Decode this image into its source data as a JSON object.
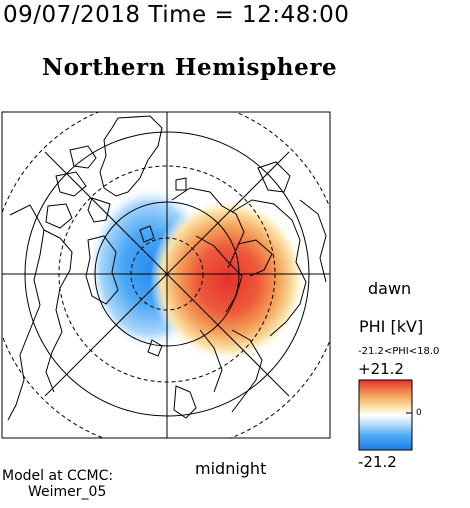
{
  "header": {
    "date": "09/07/2018",
    "time_label": "Time =",
    "time": "12:48:00",
    "full": "09/07/2018 Time = 12:48:00"
  },
  "hemisphere": "Northern Hemisphere",
  "orientation": {
    "right": "dawn",
    "bottom": "midnight"
  },
  "colorbar": {
    "title": "PHI [kV]",
    "range_text": "-21.2<PHI<18.0",
    "max_label": "+21.2",
    "min_label": "-21.2",
    "zero_label": "0",
    "colors": {
      "high": "#e53030",
      "mid": "#ffffff",
      "low": "#1f7be8"
    }
  },
  "model": {
    "line1": "Model at CCMC:",
    "line2": "Weimer_05"
  },
  "potential_cells": [
    {
      "sign": "negative",
      "color": "#1f7be8",
      "peak_kv": -21.2
    },
    {
      "sign": "positive",
      "color": "#e53030",
      "peak_kv": 18.0
    }
  ]
}
